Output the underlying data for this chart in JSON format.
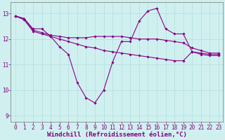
{
  "line1_volatile": {
    "x": [
      0,
      1,
      2,
      3,
      4,
      5,
      6,
      7,
      8,
      9,
      10,
      11,
      12,
      13,
      14,
      15,
      16,
      17,
      18,
      19,
      20,
      21,
      22,
      23
    ],
    "y": [
      12.9,
      12.8,
      12.4,
      12.4,
      12.1,
      11.7,
      11.4,
      10.3,
      9.7,
      9.5,
      10.0,
      11.1,
      11.9,
      11.9,
      12.7,
      13.1,
      13.2,
      12.4,
      12.2,
      12.2,
      11.5,
      11.45,
      11.4,
      11.4
    ],
    "color": "#880088",
    "linewidth": 0.8,
    "marker": "D",
    "markersize": 1.8
  },
  "line2_flat": {
    "x": [
      0,
      1,
      2,
      3,
      4,
      5,
      6,
      7,
      8,
      9,
      10,
      11,
      12,
      13,
      14,
      15,
      16,
      17,
      18,
      19,
      20,
      21,
      22,
      23
    ],
    "y": [
      12.9,
      12.8,
      12.35,
      12.25,
      12.15,
      12.1,
      12.05,
      12.05,
      12.05,
      12.1,
      12.1,
      12.1,
      12.1,
      12.05,
      12.0,
      12.0,
      12.0,
      11.95,
      11.9,
      11.85,
      11.65,
      11.55,
      11.45,
      11.45
    ],
    "color": "#880088",
    "linewidth": 0.8,
    "marker": "D",
    "markersize": 1.8
  },
  "line3_gradual": {
    "x": [
      0,
      1,
      2,
      3,
      4,
      5,
      6,
      7,
      8,
      9,
      10,
      11,
      12,
      13,
      14,
      15,
      16,
      17,
      18,
      19,
      20,
      21,
      22,
      23
    ],
    "y": [
      12.9,
      12.75,
      12.3,
      12.2,
      12.1,
      12.0,
      11.9,
      11.8,
      11.7,
      11.65,
      11.55,
      11.5,
      11.45,
      11.4,
      11.35,
      11.3,
      11.25,
      11.2,
      11.15,
      11.15,
      11.5,
      11.4,
      11.35,
      11.35
    ],
    "color": "#880088",
    "linewidth": 0.8,
    "marker": "D",
    "markersize": 1.8
  },
  "background_color": "#d0f0f0",
  "grid_color": "#b0dede",
  "spine_color": "#888888",
  "text_color": "#800080",
  "xlim": [
    -0.5,
    23.5
  ],
  "ylim": [
    8.75,
    13.45
  ],
  "yticks": [
    9,
    10,
    11,
    12,
    13
  ],
  "xticks": [
    0,
    1,
    2,
    3,
    4,
    5,
    6,
    7,
    8,
    9,
    10,
    11,
    12,
    13,
    14,
    15,
    16,
    17,
    18,
    19,
    20,
    21,
    22,
    23
  ],
  "xlabel": "Windchill (Refroidissement éolien,°C)",
  "xlabel_fontsize": 6.5,
  "tick_fontsize": 5.5
}
